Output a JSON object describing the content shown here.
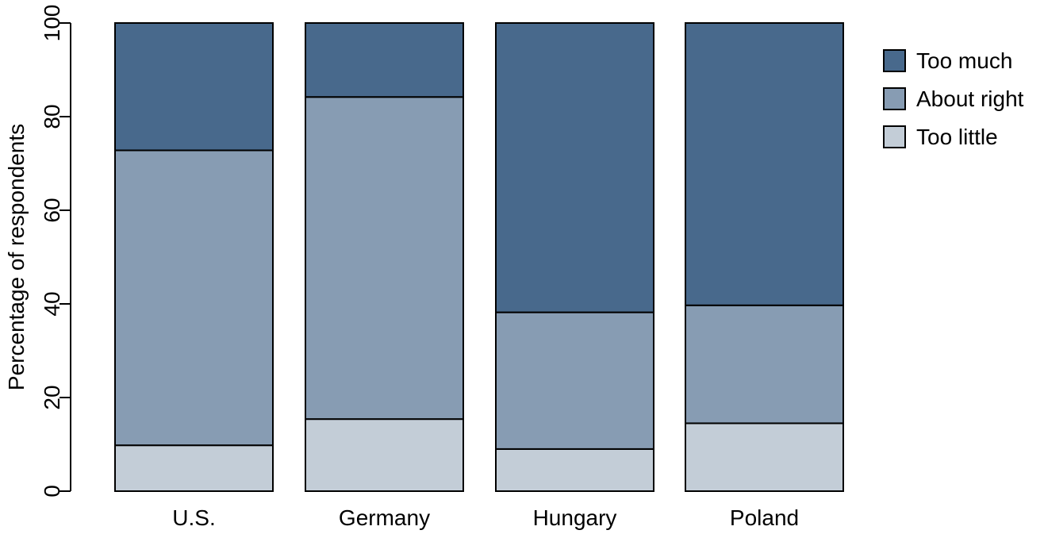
{
  "chart_data": {
    "type": "bar",
    "stacked": true,
    "title": "",
    "xlabel": "",
    "ylabel": "Percentage of respondents",
    "ylim": [
      0,
      100
    ],
    "yticks": [
      0,
      20,
      40,
      60,
      80,
      100
    ],
    "grid": false,
    "legend_position": "top-right",
    "categories": [
      "U.S.",
      "Germany",
      "Hungary",
      "Poland"
    ],
    "series": [
      {
        "name": "Too little",
        "color": "#c3cdd7",
        "values": [
          9.8,
          15.4,
          9.0,
          14.5
        ]
      },
      {
        "name": "About right",
        "color": "#879cb3",
        "values": [
          63.0,
          68.8,
          29.2,
          25.2
        ]
      },
      {
        "name": "Too much",
        "color": "#48698c",
        "values": [
          27.2,
          15.8,
          61.8,
          60.3
        ]
      }
    ],
    "legend_order": [
      "Too much",
      "About right",
      "Too little"
    ]
  }
}
